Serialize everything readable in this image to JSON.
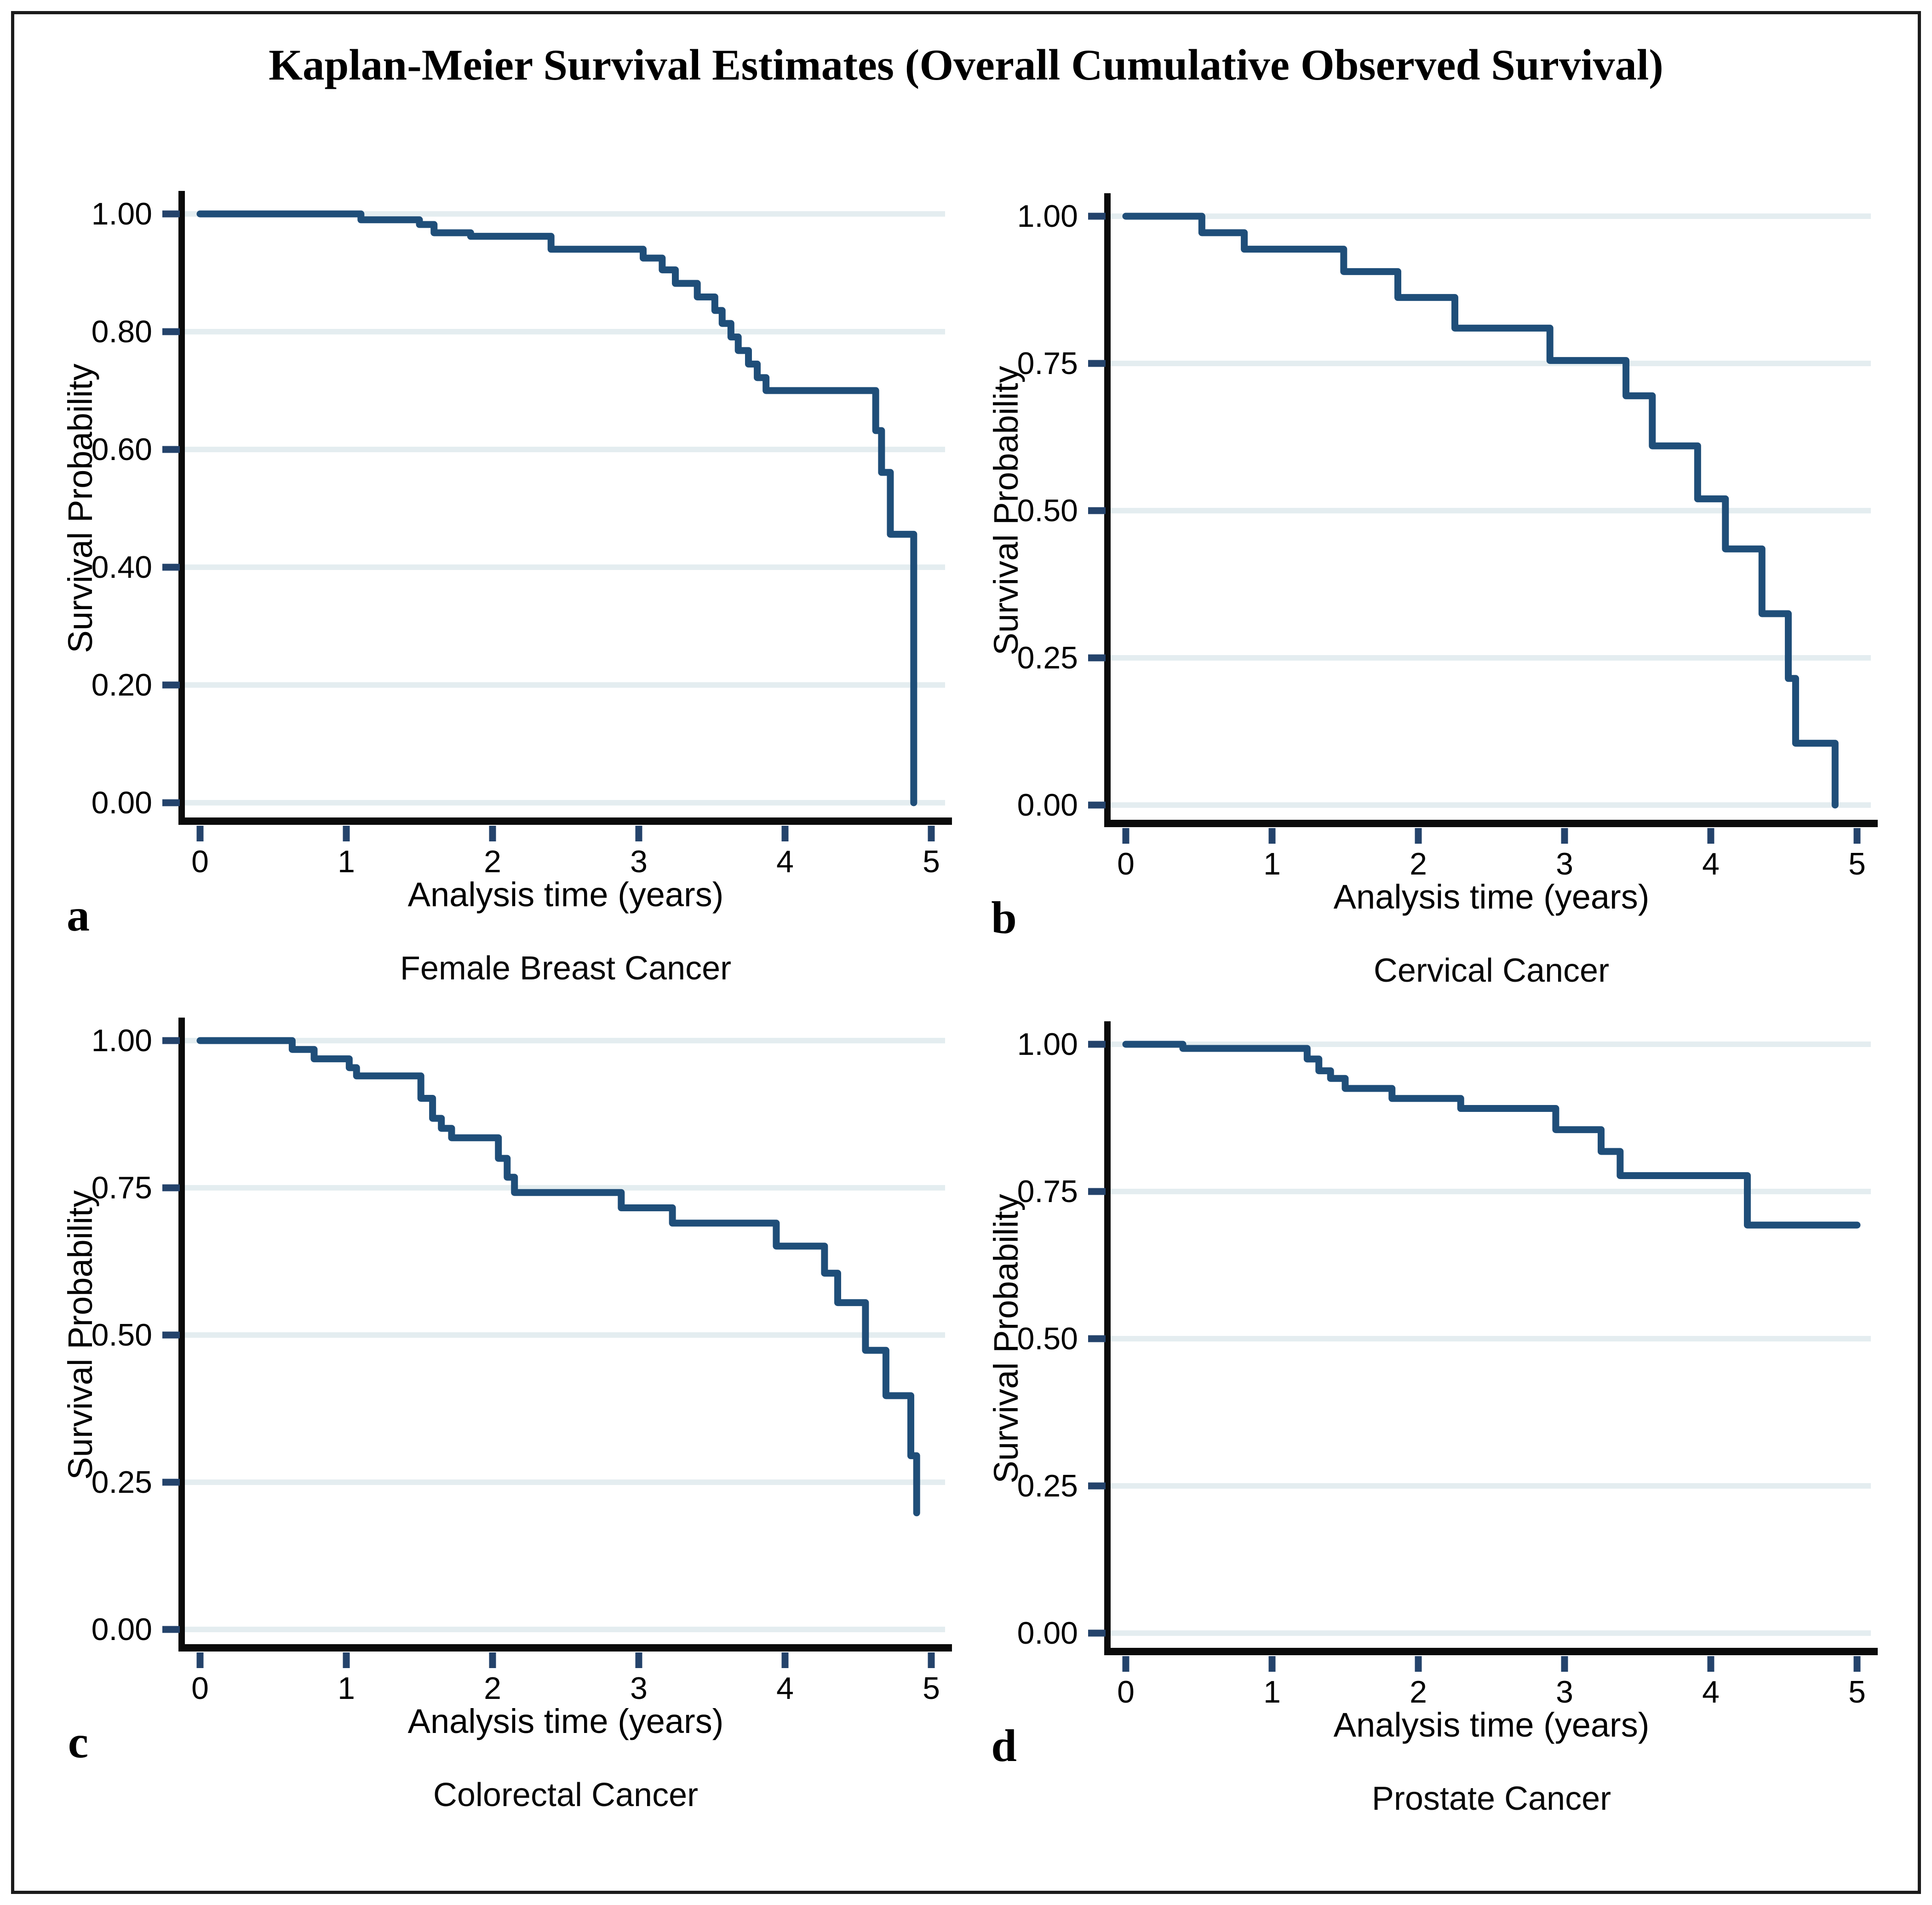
{
  "figure": {
    "title": "Kaplan-Meier Survival Estimates (Overall Cumulative Observed Survival)"
  },
  "colors": {
    "curve": "#1f4e79",
    "grid": "#e4edf0",
    "axis": "#0b0b0b",
    "tick": "#24436b",
    "text": "#000000"
  },
  "chart_data": [
    {
      "type": "line",
      "variant": "kaplan-meier-step",
      "panel_letter": "a",
      "title": "Female Breast Cancer",
      "xlabel": "Analysis time (years)",
      "ylabel": "Survival Probability",
      "xlim": [
        0,
        5
      ],
      "ylim": [
        0,
        1
      ],
      "xticks": [
        0,
        1,
        2,
        3,
        4,
        5
      ],
      "yticks": [
        0.0,
        0.2,
        0.4,
        0.6,
        0.8,
        1.0
      ],
      "grid": true,
      "legend": false,
      "steps": [
        [
          0,
          1.0
        ],
        [
          1.1,
          0.99
        ],
        [
          1.5,
          0.982
        ],
        [
          1.6,
          0.968
        ],
        [
          1.85,
          0.962
        ],
        [
          2.4,
          0.94
        ],
        [
          3.03,
          0.925
        ],
        [
          3.16,
          0.905
        ],
        [
          3.25,
          0.882
        ],
        [
          3.4,
          0.859
        ],
        [
          3.52,
          0.836
        ],
        [
          3.57,
          0.814
        ],
        [
          3.63,
          0.791
        ],
        [
          3.68,
          0.768
        ],
        [
          3.75,
          0.745
        ],
        [
          3.81,
          0.722
        ],
        [
          3.87,
          0.7
        ],
        [
          4.62,
          0.632
        ],
        [
          4.66,
          0.561
        ],
        [
          4.72,
          0.456
        ],
        [
          4.88,
          0.0
        ]
      ]
    },
    {
      "type": "line",
      "variant": "kaplan-meier-step",
      "panel_letter": "b",
      "title": "Cervical Cancer",
      "xlabel": "Analysis time (years)",
      "ylabel": "Survival Probability",
      "xlim": [
        0,
        5
      ],
      "ylim": [
        0,
        1
      ],
      "xticks": [
        0,
        1,
        2,
        3,
        4,
        5
      ],
      "yticks": [
        0.0,
        0.25,
        0.5,
        0.75,
        1.0
      ],
      "grid": true,
      "legend": false,
      "steps": [
        [
          0,
          1.0
        ],
        [
          0.52,
          0.972
        ],
        [
          0.81,
          0.944
        ],
        [
          1.49,
          0.906
        ],
        [
          1.86,
          0.862
        ],
        [
          2.25,
          0.81
        ],
        [
          2.9,
          0.755
        ],
        [
          3.42,
          0.695
        ],
        [
          3.6,
          0.61
        ],
        [
          3.91,
          0.52
        ],
        [
          4.1,
          0.435
        ],
        [
          4.35,
          0.325
        ],
        [
          4.53,
          0.215
        ],
        [
          4.58,
          0.105
        ],
        [
          4.85,
          0.0
        ]
      ]
    },
    {
      "type": "line",
      "variant": "kaplan-meier-step",
      "panel_letter": "c",
      "title": "Colorectal Cancer",
      "xlabel": "Analysis time (years)",
      "ylabel": "Survival Probability",
      "xlim": [
        0,
        5
      ],
      "ylim": [
        0,
        1
      ],
      "xticks": [
        0,
        1,
        2,
        3,
        4,
        5
      ],
      "yticks": [
        0.0,
        0.25,
        0.5,
        0.75,
        1.0
      ],
      "grid": true,
      "legend": false,
      "steps": [
        [
          0,
          1.0
        ],
        [
          0.63,
          0.985
        ],
        [
          0.78,
          0.969
        ],
        [
          1.02,
          0.954
        ],
        [
          1.07,
          0.94
        ],
        [
          1.51,
          0.902
        ],
        [
          1.59,
          0.868
        ],
        [
          1.65,
          0.851
        ],
        [
          1.72,
          0.835
        ],
        [
          2.04,
          0.8
        ],
        [
          2.1,
          0.768
        ],
        [
          2.15,
          0.742
        ],
        [
          2.88,
          0.716
        ],
        [
          3.23,
          0.69
        ],
        [
          3.94,
          0.651
        ],
        [
          4.27,
          0.605
        ],
        [
          4.36,
          0.555
        ],
        [
          4.55,
          0.474
        ],
        [
          4.69,
          0.397
        ],
        [
          4.86,
          0.295
        ],
        [
          4.9,
          0.198
        ]
      ]
    },
    {
      "type": "line",
      "variant": "kaplan-meier-step",
      "panel_letter": "d",
      "title": "Prostate Cancer",
      "xlabel": "Analysis time (years)",
      "ylabel": "Survival Probability",
      "xlim": [
        0,
        5
      ],
      "ylim": [
        0,
        1
      ],
      "xticks": [
        0,
        1,
        2,
        3,
        4,
        5
      ],
      "yticks": [
        0.0,
        0.25,
        0.5,
        0.75,
        1.0
      ],
      "grid": true,
      "legend": false,
      "steps": [
        [
          0,
          1.0
        ],
        [
          0.39,
          0.993
        ],
        [
          1.24,
          0.975
        ],
        [
          1.32,
          0.955
        ],
        [
          1.4,
          0.942
        ],
        [
          1.5,
          0.925
        ],
        [
          1.82,
          0.908
        ],
        [
          2.29,
          0.891
        ],
        [
          2.94,
          0.855
        ],
        [
          3.25,
          0.818
        ],
        [
          3.38,
          0.777
        ],
        [
          4.25,
          0.693
        ],
        [
          5.0,
          0.693
        ]
      ]
    }
  ]
}
